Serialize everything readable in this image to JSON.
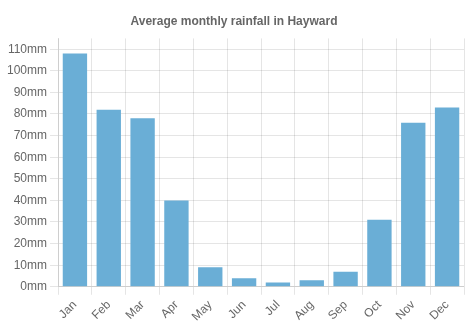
{
  "chart_data": {
    "type": "bar",
    "title": "Average monthly rainfall in Hayward",
    "categories": [
      "Jan",
      "Feb",
      "Mar",
      "Apr",
      "May",
      "Jun",
      "Jul",
      "Aug",
      "Sep",
      "Oct",
      "Nov",
      "Dec"
    ],
    "values": [
      108,
      82,
      78,
      40,
      9,
      4,
      2,
      3,
      7,
      31,
      76,
      83
    ],
    "color": "#6aaed6",
    "ylim": [
      0,
      115
    ],
    "yticks": [
      {
        "value": 0,
        "label": "0mm"
      },
      {
        "value": 10,
        "label": "10mm"
      },
      {
        "value": 20,
        "label": "20mm"
      },
      {
        "value": 30,
        "label": "30mm"
      },
      {
        "value": 40,
        "label": "40mm"
      },
      {
        "value": 50,
        "label": "50mm"
      },
      {
        "value": 60,
        "label": "60mm"
      },
      {
        "value": 70,
        "label": "70mm"
      },
      {
        "value": 80,
        "label": "80mm"
      },
      {
        "value": 90,
        "label": "90mm"
      },
      {
        "value": 100,
        "label": "100mm"
      },
      {
        "value": 110,
        "label": "110mm"
      }
    ],
    "grid": true
  }
}
